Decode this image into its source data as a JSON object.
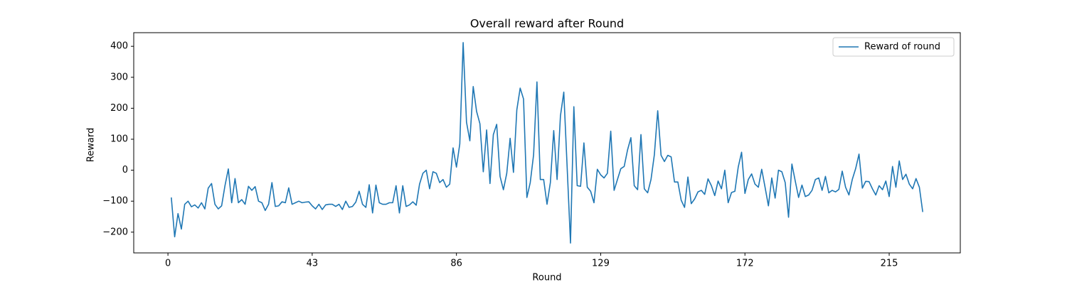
{
  "chart_data": {
    "type": "line",
    "title": "Overall reward after Round",
    "x_label": "Round",
    "y_label": "Reward",
    "x": [
      1,
      2,
      3,
      4,
      5,
      6,
      7,
      8,
      9,
      10,
      11,
      12,
      13,
      14,
      15,
      16,
      17,
      18,
      19,
      20,
      21,
      22,
      23,
      24,
      25,
      26,
      27,
      28,
      29,
      30,
      31,
      32,
      33,
      34,
      35,
      36,
      37,
      38,
      39,
      40,
      41,
      42,
      43,
      44,
      45,
      46,
      47,
      48,
      49,
      50,
      51,
      52,
      53,
      54,
      55,
      56,
      57,
      58,
      59,
      60,
      61,
      62,
      63,
      64,
      65,
      66,
      67,
      68,
      69,
      70,
      71,
      72,
      73,
      74,
      75,
      76,
      77,
      78,
      79,
      80,
      81,
      82,
      83,
      84,
      85,
      86,
      87,
      88,
      89,
      90,
      91,
      92,
      93,
      94,
      95,
      96,
      97,
      98,
      99,
      100,
      101,
      102,
      103,
      104,
      105,
      106,
      107,
      108,
      109,
      110,
      111,
      112,
      113,
      114,
      115,
      116,
      117,
      118,
      119,
      120,
      121,
      122,
      123,
      124,
      125,
      126,
      127,
      128,
      129,
      130,
      131,
      132,
      133,
      134,
      135,
      136,
      137,
      138,
      139,
      140,
      141,
      142,
      143,
      144,
      145,
      146,
      147,
      148,
      149,
      150,
      151,
      152,
      153,
      154,
      155,
      156,
      157,
      158,
      159,
      160,
      161,
      162,
      163,
      164,
      165,
      166,
      167,
      168,
      169,
      170,
      171,
      172,
      173,
      174,
      175,
      176,
      177,
      178,
      179,
      180,
      181,
      182,
      183,
      184,
      185,
      186,
      187,
      188,
      189,
      190,
      191,
      192,
      193,
      194,
      195,
      196,
      197,
      198,
      199,
      200,
      201,
      202,
      203,
      204,
      205,
      206,
      207,
      208,
      209,
      210,
      211,
      212,
      213,
      214,
      215,
      216,
      217,
      218,
      219,
      220,
      221,
      222,
      223,
      224,
      225
    ],
    "series": [
      {
        "name": "Reward of round",
        "color": "#1f77b4",
        "values": [
          -88,
          -215,
          -140,
          -190,
          -110,
          -100,
          -118,
          -112,
          -122,
          -105,
          -125,
          -58,
          -43,
          -110,
          -125,
          -115,
          -50,
          4,
          -105,
          -27,
          -105,
          -95,
          -110,
          -52,
          -65,
          -53,
          -100,
          -105,
          -130,
          -110,
          -40,
          -117,
          -115,
          -102,
          -105,
          -57,
          -110,
          -105,
          -100,
          -105,
          -103,
          -102,
          -115,
          -125,
          -110,
          -127,
          -112,
          -110,
          -110,
          -117,
          -110,
          -127,
          -100,
          -120,
          -117,
          -103,
          -68,
          -110,
          -120,
          -47,
          -138,
          -48,
          -105,
          -110,
          -110,
          -105,
          -105,
          -50,
          -138,
          -50,
          -117,
          -112,
          -102,
          -113,
          -45,
          -10,
          0,
          -60,
          -5,
          -10,
          -40,
          -30,
          -55,
          -45,
          72,
          10,
          85,
          412,
          155,
          95,
          270,
          190,
          150,
          -5,
          130,
          -43,
          115,
          148,
          -20,
          -63,
          -10,
          103,
          -7,
          195,
          265,
          230,
          -88,
          -40,
          50,
          285,
          -30,
          -30,
          -110,
          -40,
          128,
          -30,
          175,
          252,
          10,
          -235,
          205,
          -50,
          -52,
          88,
          -55,
          -68,
          -105,
          3,
          -15,
          -25,
          -10,
          126,
          -65,
          -30,
          5,
          12,
          65,
          105,
          -50,
          -63,
          115,
          -60,
          -73,
          -30,
          50,
          192,
          48,
          28,
          48,
          43,
          -38,
          -38,
          -97,
          -120,
          -22,
          -108,
          -93,
          -70,
          -65,
          -78,
          -28,
          -50,
          -82,
          -35,
          -60,
          0,
          -105,
          -72,
          -68,
          10,
          58,
          -75,
          -30,
          -12,
          -45,
          -55,
          3,
          -55,
          -115,
          -25,
          -90,
          0,
          -5,
          -40,
          -152,
          20,
          -35,
          -88,
          -48,
          -85,
          -80,
          -65,
          -30,
          -25,
          -65,
          -20,
          -73,
          -65,
          -70,
          -62,
          -3,
          -55,
          -80,
          -30,
          5,
          52,
          -58,
          -36,
          -37,
          -60,
          -80,
          -50,
          -63,
          -35,
          -85,
          12,
          -55,
          30,
          -30,
          -13,
          -45,
          -60,
          -27,
          -55,
          -135
        ]
      }
    ],
    "xlim": [
      -10.2,
      236.2
    ],
    "xticks": [
      0,
      43,
      86,
      129,
      172,
      215
    ],
    "ylim": [
      -267,
      444
    ],
    "yticks": [
      {
        "value": -200,
        "label": "−200"
      },
      {
        "value": -100,
        "label": "−100"
      },
      0,
      100,
      200,
      300,
      400
    ],
    "grid": false,
    "legend": "upper right"
  }
}
